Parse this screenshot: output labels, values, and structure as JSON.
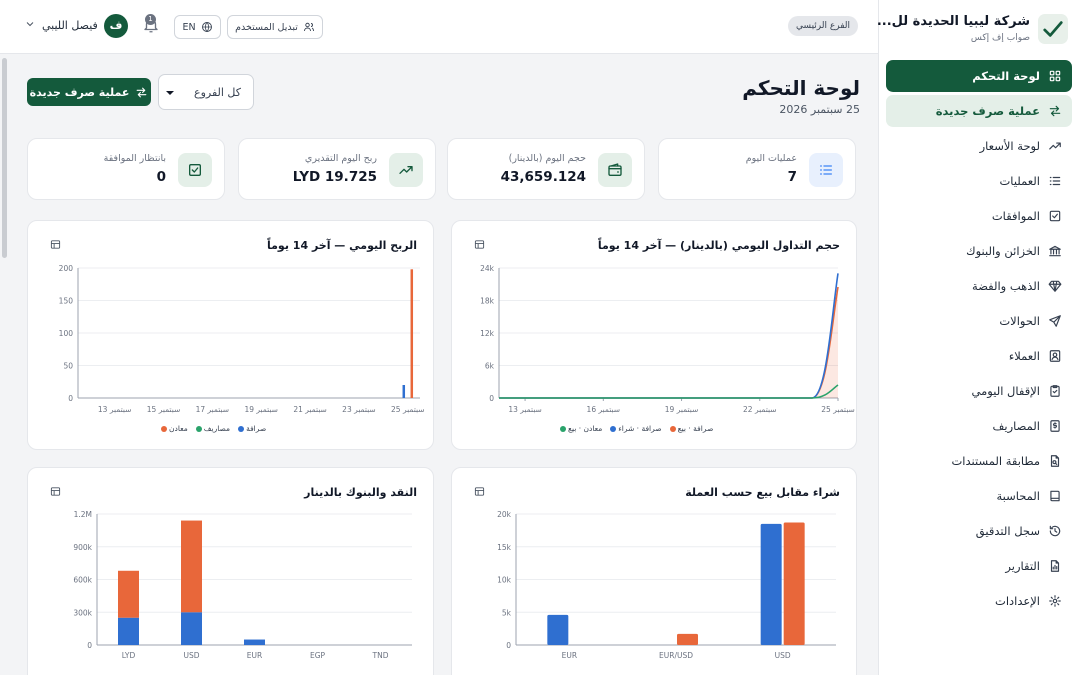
{
  "brand": {
    "title": "شركة ليبيا الحديدة لل...",
    "subtitle": "صواب إف إكس"
  },
  "sidebar": {
    "items": [
      {
        "label": "لوحة التحكم",
        "icon": "dashboard-icon",
        "state": "active"
      },
      {
        "label": "عملية صرف جديدة",
        "icon": "swap-icon",
        "state": "soft"
      },
      {
        "label": "لوحة الأسعار",
        "icon": "trending-icon",
        "state": ""
      },
      {
        "label": "العمليات",
        "icon": "list-icon",
        "state": ""
      },
      {
        "label": "الموافقات",
        "icon": "check-square-icon",
        "state": ""
      },
      {
        "label": "الخزائن والبنوك",
        "icon": "bank-icon",
        "state": ""
      },
      {
        "label": "الذهب والفضة",
        "icon": "diamond-icon",
        "state": ""
      },
      {
        "label": "الحوالات",
        "icon": "send-icon",
        "state": ""
      },
      {
        "label": "العملاء",
        "icon": "user-card-icon",
        "state": ""
      },
      {
        "label": "الإقفال اليومي",
        "icon": "clipboard-check-icon",
        "state": ""
      },
      {
        "label": "المصاريف",
        "icon": "dollar-doc-icon",
        "state": ""
      },
      {
        "label": "مطابقة المستندات",
        "icon": "doc-search-icon",
        "state": ""
      },
      {
        "label": "المحاسبة",
        "icon": "book-icon",
        "state": ""
      },
      {
        "label": "سجل التدقيق",
        "icon": "history-icon",
        "state": ""
      },
      {
        "label": "التقارير",
        "icon": "report-icon",
        "state": ""
      },
      {
        "label": "الإعدادات",
        "icon": "gear-icon",
        "state": ""
      }
    ]
  },
  "topbar": {
    "branch": "الفرع الرئيسي",
    "user_name": "فيصل الليبي",
    "avatar_letter": "ف",
    "notif_count": "1",
    "lang": "EN",
    "switch_user": "تبديل المستخدم"
  },
  "page": {
    "title": "لوحة التحكم",
    "date": "25 سبتمبر 2026",
    "new_exchange": "عملية صرف جديدة",
    "branch_filter": "كل الفروع"
  },
  "stats": [
    {
      "label": "عمليات اليوم",
      "value": "7",
      "icon": "list-icon",
      "color": "#3b82f6",
      "bg": "#e8f0fd"
    },
    {
      "label": "حجم اليوم (بالدينار)",
      "value": "43,659.124",
      "icon": "wallet-icon",
      "color": "#145a3c",
      "bg": "#e4efe8"
    },
    {
      "label": "ربح اليوم التقديري",
      "value": "LYD 19.725",
      "icon": "trending-icon",
      "color": "#145a3c",
      "bg": "#e4efe8"
    },
    {
      "label": "بانتظار الموافقة",
      "value": "0",
      "icon": "check-square-icon",
      "color": "#145a3c",
      "bg": "#e4efe8"
    }
  ],
  "charts": {
    "volume": {
      "title": "حجم التداول اليومي (بالدينار) — آخر 14 يوماً",
      "yticks": [
        "0",
        "6k",
        "12k",
        "18k",
        "24k"
      ],
      "xticks": [
        "13 سبتمبر",
        "16 سبتمبر",
        "19 سبتمبر",
        "22 سبتمبر",
        "25 سبتمبر"
      ],
      "legend": [
        {
          "name": "صرافة · بيع",
          "color": "#e8673a"
        },
        {
          "name": "صرافة · شراء",
          "color": "#2f6fd0"
        },
        {
          "name": "معادن · بيع",
          "color": "#2aa36b"
        }
      ]
    },
    "profit": {
      "title": "الربح اليومي — آخر 14 يوماً",
      "yticks": [
        "0",
        "50",
        "100",
        "150",
        "200"
      ],
      "xticks": [
        "13 سبتمبر",
        "15 سبتمبر",
        "17 سبتمبر",
        "19 سبتمبر",
        "21 سبتمبر",
        "23 سبتمبر",
        "25 سبتمبر"
      ],
      "legend": [
        {
          "name": "صرافة",
          "color": "#2f6fd0"
        },
        {
          "name": "مصاريف",
          "color": "#2aa36b"
        },
        {
          "name": "معادن",
          "color": "#e8673a"
        }
      ]
    },
    "buysell": {
      "title": "شراء مقابل بيع حسب العملة",
      "yticks": [
        "0",
        "5k",
        "10k",
        "15k",
        "20k"
      ],
      "categories": [
        "EUR",
        "EUR/USD",
        "USD"
      ]
    },
    "cash": {
      "title": "النقد والبنوك بالدينار",
      "yticks": [
        "0",
        "300k",
        "600k",
        "900k",
        "1.2M"
      ],
      "categories": [
        "LYD",
        "USD",
        "EUR",
        "EGP",
        "TND"
      ]
    }
  },
  "chart_data": [
    {
      "type": "line",
      "title": "حجم التداول اليومي (بالدينار) — آخر 14 يوماً",
      "ylim": [
        0,
        24000
      ],
      "x": [
        "12 سبتمبر",
        "13 سبتمبر",
        "14 سبتمبر",
        "15 سبتمبر",
        "16 سبتمبر",
        "17 سبتمبر",
        "18 سبتمبر",
        "19 سبتمبر",
        "20 سبتمبر",
        "21 سبتمبر",
        "22 سبتمبر",
        "23 سبتمبر",
        "24 سبتمبر",
        "25 سبتمبر"
      ],
      "series": [
        {
          "name": "صرافة · بيع",
          "color": "#e8673a",
          "values": [
            0,
            0,
            0,
            0,
            0,
            0,
            0,
            0,
            0,
            0,
            0,
            0,
            0,
            20500
          ]
        },
        {
          "name": "صرافة · شراء",
          "color": "#2f6fd0",
          "values": [
            0,
            0,
            0,
            0,
            0,
            0,
            0,
            0,
            0,
            0,
            0,
            0,
            0,
            23000
          ]
        },
        {
          "name": "معادن · بيع",
          "color": "#2aa36b",
          "values": [
            0,
            0,
            0,
            0,
            0,
            0,
            0,
            0,
            0,
            0,
            0,
            0,
            0,
            2400
          ]
        }
      ]
    },
    {
      "type": "bar",
      "title": "الربح اليومي — آخر 14 يوماً",
      "ylim": [
        0,
        200
      ],
      "x": [
        "12 سبتمبر",
        "13 سبتمبر",
        "14 سبتمبر",
        "15 سبتمبر",
        "16 سبتمبر",
        "17 سبتمبر",
        "18 سبتمبر",
        "19 سبتمبر",
        "20 سبتمبر",
        "21 سبتمبر",
        "22 سبتمبر",
        "23 سبتمبر",
        "24 سبتمبر",
        "25 سبتمبر"
      ],
      "series": [
        {
          "name": "صرافة",
          "color": "#2f6fd0",
          "values": [
            0,
            0,
            0,
            0,
            0,
            0,
            0,
            0,
            0,
            0,
            0,
            0,
            0,
            20
          ]
        },
        {
          "name": "مصاريف",
          "color": "#2aa36b",
          "values": [
            0,
            0,
            0,
            0,
            0,
            0,
            0,
            0,
            0,
            0,
            0,
            0,
            0,
            0
          ]
        },
        {
          "name": "معادن",
          "color": "#e8673a",
          "values": [
            0,
            0,
            0,
            0,
            0,
            0,
            0,
            0,
            0,
            0,
            0,
            0,
            0,
            198
          ]
        }
      ]
    },
    {
      "type": "bar",
      "title": "شراء مقابل بيع حسب العملة",
      "ylim": [
        0,
        20000
      ],
      "categories": [
        "EUR",
        "EUR/USD",
        "USD"
      ],
      "series": [
        {
          "color": "#2f6fd0",
          "values": [
            4600,
            0,
            18500
          ]
        },
        {
          "color": "#e8673a",
          "values": [
            0,
            1700,
            18700
          ]
        }
      ]
    },
    {
      "type": "bar",
      "stacked": true,
      "title": "النقد والبنوك بالدينار",
      "ylim": [
        0,
        1200000
      ],
      "categories": [
        "LYD",
        "USD",
        "EUR",
        "EGP",
        "TND"
      ],
      "series": [
        {
          "color": "#2f6fd0",
          "values": [
            250000,
            300000,
            50000,
            0,
            0
          ]
        },
        {
          "color": "#e8673a",
          "values": [
            430000,
            840000,
            0,
            0,
            0
          ]
        }
      ]
    }
  ]
}
